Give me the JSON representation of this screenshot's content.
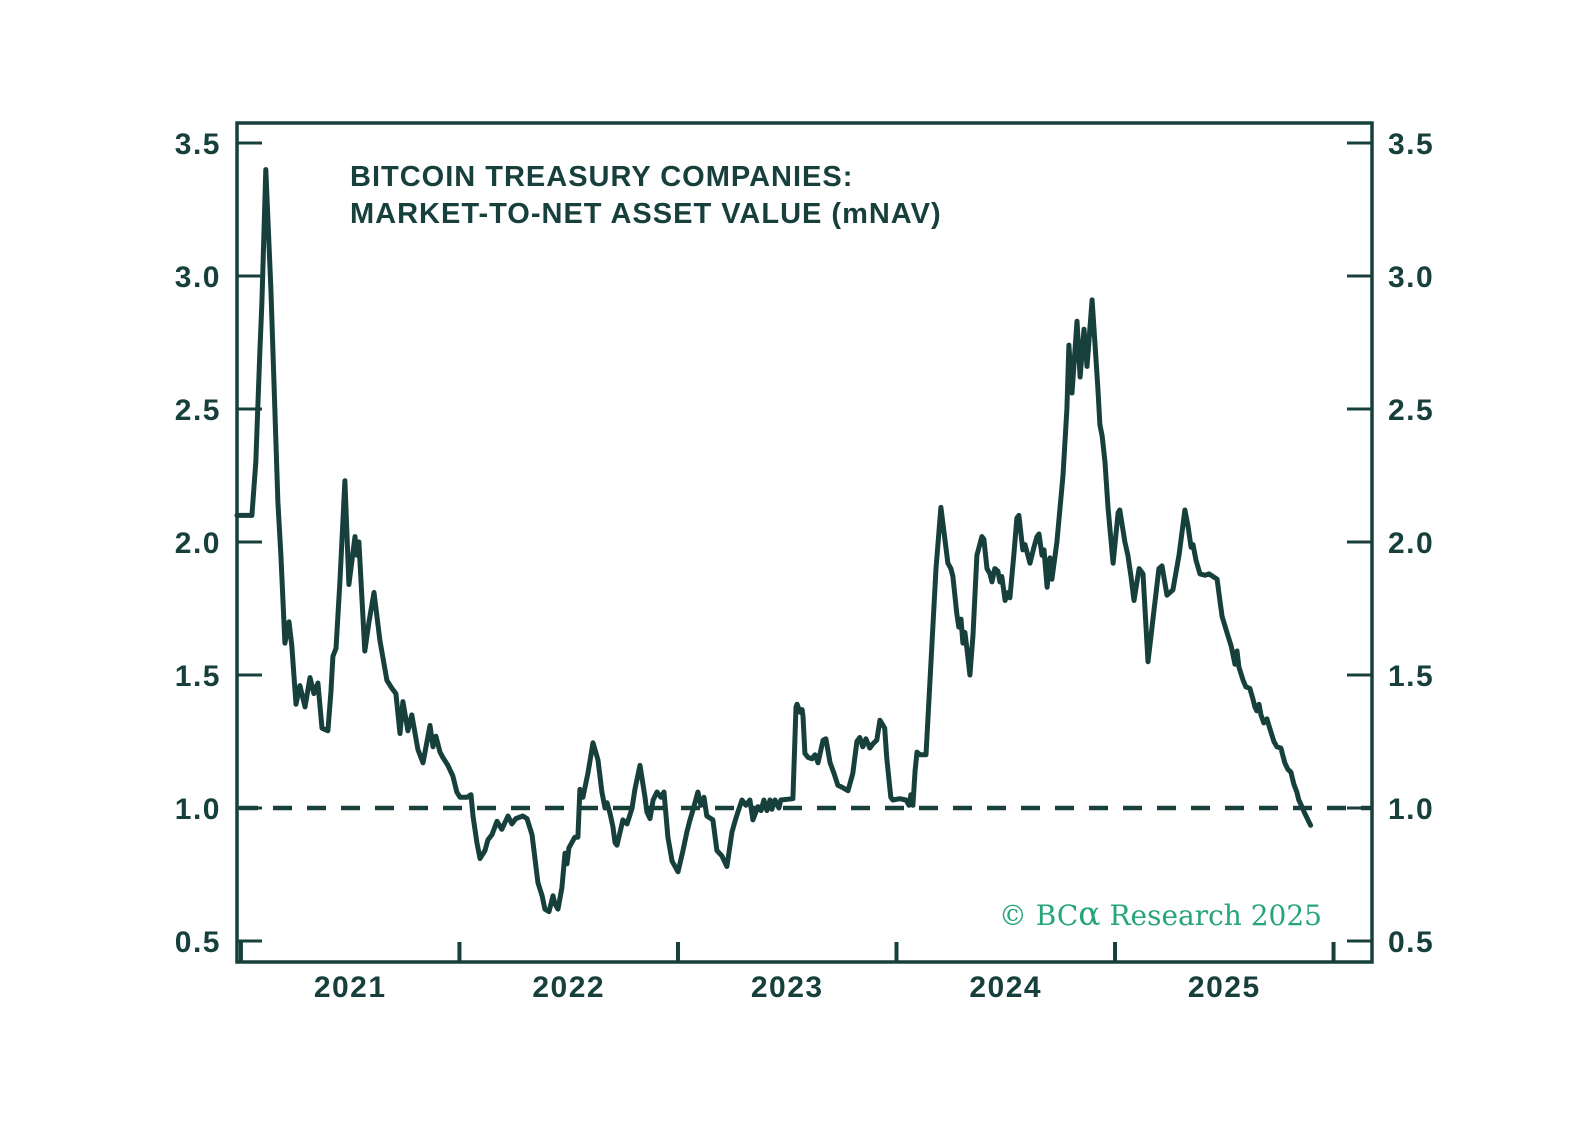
{
  "page": {
    "background": "#ffffff"
  },
  "chart_data": {
    "type": "line",
    "title_line1": "BITCOIN TREASURY COMPANIES:",
    "title_line2": "MARKET-TO-NET ASSET VALUE (mNAV)",
    "copyright_pre": "© BC",
    "copyright_alpha": "α",
    "copyright_post": " Research 2025",
    "colors": {
      "line": "#17403d",
      "text": "#17403d",
      "axis": "#17403d",
      "copyright": "#27a57a",
      "background": "#ffffff"
    },
    "grid": "off",
    "legend": "none",
    "y_axis": {
      "sides": "both",
      "ticks": [
        0.5,
        1.0,
        1.5,
        2.0,
        2.5,
        3.0,
        3.5
      ],
      "tick_labels": [
        "0.5",
        "1.0",
        "1.5",
        "2.0",
        "2.5",
        "3.0",
        "3.5"
      ],
      "range": [
        0.421,
        3.575
      ]
    },
    "x_axis": {
      "year_labels": [
        "2021",
        "2022",
        "2023",
        "2024",
        "2025"
      ],
      "year_boundaries": [
        2021,
        2022,
        2023,
        2024,
        2025,
        2026
      ],
      "range": [
        2020.982,
        2026.176
      ]
    },
    "reference_line": {
      "value": 1.0,
      "style": "dashed"
    },
    "series": [
      {
        "name": "mNAV",
        "points": [
          [
            2020.982,
            2.1
          ],
          [
            2021.05,
            2.1
          ],
          [
            2021.068,
            2.3
          ],
          [
            2021.087,
            2.72
          ],
          [
            2021.096,
            2.9
          ],
          [
            2021.114,
            3.4
          ],
          [
            2021.137,
            2.95
          ],
          [
            2021.169,
            2.15
          ],
          [
            2021.183,
            1.95
          ],
          [
            2021.201,
            1.62
          ],
          [
            2021.22,
            1.7
          ],
          [
            2021.233,
            1.61
          ],
          [
            2021.252,
            1.39
          ],
          [
            2021.27,
            1.46
          ],
          [
            2021.293,
            1.38
          ],
          [
            2021.316,
            1.49
          ],
          [
            2021.334,
            1.43
          ],
          [
            2021.352,
            1.47
          ],
          [
            2021.371,
            1.3
          ],
          [
            2021.398,
            1.29
          ],
          [
            2021.412,
            1.44
          ],
          [
            2021.421,
            1.57
          ],
          [
            2021.435,
            1.6
          ],
          [
            2021.453,
            1.85
          ],
          [
            2021.476,
            2.23
          ],
          [
            2021.494,
            1.84
          ],
          [
            2021.522,
            2.02
          ],
          [
            2021.531,
            1.95
          ],
          [
            2021.54,
            2.0
          ],
          [
            2021.567,
            1.59
          ],
          [
            2021.586,
            1.7
          ],
          [
            2021.609,
            1.81
          ],
          [
            2021.636,
            1.63
          ],
          [
            2021.668,
            1.48
          ],
          [
            2021.691,
            1.45
          ],
          [
            2021.709,
            1.43
          ],
          [
            2021.728,
            1.28
          ],
          [
            2021.741,
            1.4
          ],
          [
            2021.764,
            1.29
          ],
          [
            2021.782,
            1.35
          ],
          [
            2021.81,
            1.22
          ],
          [
            2021.833,
            1.17
          ],
          [
            2021.865,
            1.31
          ],
          [
            2021.879,
            1.23
          ],
          [
            2021.892,
            1.27
          ],
          [
            2021.911,
            1.21
          ],
          [
            2021.924,
            1.19
          ],
          [
            2021.947,
            1.16
          ],
          [
            2021.97,
            1.12
          ],
          [
            2021.988,
            1.06
          ],
          [
            2022.003,
            1.04
          ],
          [
            2022.035,
            1.04
          ],
          [
            2022.053,
            1.05
          ],
          [
            2022.062,
            0.97
          ],
          [
            2022.08,
            0.87
          ],
          [
            2022.094,
            0.81
          ],
          [
            2022.117,
            0.84
          ],
          [
            2022.13,
            0.88
          ],
          [
            2022.149,
            0.9
          ],
          [
            2022.172,
            0.95
          ],
          [
            2022.194,
            0.92
          ],
          [
            2022.222,
            0.97
          ],
          [
            2022.24,
            0.94
          ],
          [
            2022.258,
            0.96
          ],
          [
            2022.29,
            0.97
          ],
          [
            2022.309,
            0.96
          ],
          [
            2022.332,
            0.9
          ],
          [
            2022.359,
            0.72
          ],
          [
            2022.378,
            0.67
          ],
          [
            2022.391,
            0.62
          ],
          [
            2022.41,
            0.61
          ],
          [
            2022.428,
            0.67
          ],
          [
            2022.437,
            0.64
          ],
          [
            2022.451,
            0.62
          ],
          [
            2022.469,
            0.7
          ],
          [
            2022.483,
            0.83
          ],
          [
            2022.492,
            0.79
          ],
          [
            2022.501,
            0.85
          ],
          [
            2022.528,
            0.89
          ],
          [
            2022.542,
            0.89
          ],
          [
            2022.551,
            1.07
          ],
          [
            2022.565,
            1.04
          ],
          [
            2022.588,
            1.13
          ],
          [
            2022.611,
            1.245
          ],
          [
            2022.634,
            1.18
          ],
          [
            2022.652,
            1.06
          ],
          [
            2022.666,
            1.0
          ],
          [
            2022.675,
            1.02
          ],
          [
            2022.689,
            0.98
          ],
          [
            2022.702,
            0.93
          ],
          [
            2022.712,
            0.87
          ],
          [
            2022.721,
            0.86
          ],
          [
            2022.748,
            0.955
          ],
          [
            2022.767,
            0.94
          ],
          [
            2022.79,
            1.0
          ],
          [
            2022.803,
            1.07
          ],
          [
            2022.826,
            1.16
          ],
          [
            2022.849,
            1.04
          ],
          [
            2022.858,
            0.985
          ],
          [
            2022.872,
            0.96
          ],
          [
            2022.886,
            1.03
          ],
          [
            2022.904,
            1.06
          ],
          [
            2022.922,
            1.04
          ],
          [
            2022.936,
            1.06
          ],
          [
            2022.954,
            0.89
          ],
          [
            2022.973,
            0.8
          ],
          [
            2023.0,
            0.76
          ],
          [
            2023.023,
            0.84
          ],
          [
            2023.041,
            0.91
          ],
          [
            2023.055,
            0.955
          ],
          [
            2023.068,
            0.99
          ],
          [
            2023.091,
            1.06
          ],
          [
            2023.105,
            1.01
          ],
          [
            2023.119,
            1.04
          ],
          [
            2023.132,
            0.97
          ],
          [
            2023.16,
            0.955
          ],
          [
            2023.178,
            0.84
          ],
          [
            2023.201,
            0.82
          ],
          [
            2023.224,
            0.78
          ],
          [
            2023.247,
            0.91
          ],
          [
            2023.261,
            0.95
          ],
          [
            2023.274,
            0.985
          ],
          [
            2023.293,
            1.03
          ],
          [
            2023.311,
            1.01
          ],
          [
            2023.329,
            1.03
          ],
          [
            2023.343,
            0.955
          ],
          [
            2023.366,
            1.005
          ],
          [
            2023.38,
            0.99
          ],
          [
            2023.393,
            1.03
          ],
          [
            2023.407,
            0.99
          ],
          [
            2023.421,
            1.03
          ],
          [
            2023.43,
            0.995
          ],
          [
            2023.444,
            1.03
          ],
          [
            2023.462,
            1.0
          ],
          [
            2023.471,
            1.03
          ],
          [
            2023.526,
            1.035
          ],
          [
            2023.54,
            1.38
          ],
          [
            2023.545,
            1.39
          ],
          [
            2023.559,
            1.36
          ],
          [
            2023.568,
            1.37
          ],
          [
            2023.572,
            1.345
          ],
          [
            2023.581,
            1.205
          ],
          [
            2023.595,
            1.19
          ],
          [
            2023.613,
            1.185
          ],
          [
            2023.627,
            1.2
          ],
          [
            2023.641,
            1.17
          ],
          [
            2023.664,
            1.255
          ],
          [
            2023.677,
            1.26
          ],
          [
            2023.696,
            1.17
          ],
          [
            2023.714,
            1.13
          ],
          [
            2023.732,
            1.085
          ],
          [
            2023.746,
            1.08
          ],
          [
            2023.778,
            1.065
          ],
          [
            2023.8,
            1.13
          ],
          [
            2023.819,
            1.25
          ],
          [
            2023.832,
            1.265
          ],
          [
            2023.846,
            1.23
          ],
          [
            2023.86,
            1.26
          ],
          [
            2023.878,
            1.225
          ],
          [
            2023.891,
            1.24
          ],
          [
            2023.91,
            1.255
          ],
          [
            2023.924,
            1.33
          ],
          [
            2023.946,
            1.3
          ],
          [
            2023.955,
            1.19
          ],
          [
            2023.974,
            1.04
          ],
          [
            2023.983,
            1.03
          ],
          [
            2024.015,
            1.035
          ],
          [
            2024.043,
            1.03
          ],
          [
            2024.057,
            1.01
          ],
          [
            2024.066,
            1.05
          ],
          [
            2024.075,
            1.01
          ],
          [
            2024.085,
            1.14
          ],
          [
            2024.094,
            1.21
          ],
          [
            2024.108,
            1.2
          ],
          [
            2024.135,
            1.2
          ],
          [
            2024.158,
            1.55
          ],
          [
            2024.181,
            1.9
          ],
          [
            2024.203,
            2.13
          ],
          [
            2024.235,
            1.92
          ],
          [
            2024.249,
            1.9
          ],
          [
            2024.258,
            1.87
          ],
          [
            2024.276,
            1.73
          ],
          [
            2024.285,
            1.68
          ],
          [
            2024.295,
            1.71
          ],
          [
            2024.304,
            1.62
          ],
          [
            2024.313,
            1.66
          ],
          [
            2024.322,
            1.6
          ],
          [
            2024.336,
            1.5
          ],
          [
            2024.35,
            1.65
          ],
          [
            2024.368,
            1.95
          ],
          [
            2024.391,
            2.02
          ],
          [
            2024.4,
            2.01
          ],
          [
            2024.414,
            1.9
          ],
          [
            2024.428,
            1.88
          ],
          [
            2024.437,
            1.85
          ],
          [
            2024.45,
            1.9
          ],
          [
            2024.464,
            1.89
          ],
          [
            2024.473,
            1.85
          ],
          [
            2024.482,
            1.87
          ],
          [
            2024.497,
            1.78
          ],
          [
            2024.51,
            1.81
          ],
          [
            2024.519,
            1.79
          ],
          [
            2024.537,
            1.95
          ],
          [
            2024.551,
            2.09
          ],
          [
            2024.56,
            2.1
          ],
          [
            2024.578,
            1.97
          ],
          [
            2024.588,
            1.99
          ],
          [
            2024.611,
            1.92
          ],
          [
            2024.629,
            1.98
          ],
          [
            2024.643,
            2.02
          ],
          [
            2024.652,
            2.03
          ],
          [
            2024.666,
            1.95
          ],
          [
            2024.675,
            1.97
          ],
          [
            2024.689,
            1.83
          ],
          [
            2024.702,
            1.94
          ],
          [
            2024.711,
            1.86
          ],
          [
            2024.734,
            2.0
          ],
          [
            2024.762,
            2.25
          ],
          [
            2024.78,
            2.5
          ],
          [
            2024.789,
            2.74
          ],
          [
            2024.803,
            2.56
          ],
          [
            2024.826,
            2.83
          ],
          [
            2024.84,
            2.62
          ],
          [
            2024.858,
            2.8
          ],
          [
            2024.872,
            2.66
          ],
          [
            2024.895,
            2.91
          ],
          [
            2024.908,
            2.75
          ],
          [
            2024.922,
            2.57
          ],
          [
            2024.931,
            2.44
          ],
          [
            2024.941,
            2.4
          ],
          [
            2024.954,
            2.3
          ],
          [
            2024.968,
            2.13
          ],
          [
            2024.991,
            1.92
          ],
          [
            2025.014,
            2.11
          ],
          [
            2025.022,
            2.12
          ],
          [
            2025.045,
            2.0
          ],
          [
            2025.059,
            1.95
          ],
          [
            2025.073,
            1.87
          ],
          [
            2025.087,
            1.78
          ],
          [
            2025.11,
            1.9
          ],
          [
            2025.128,
            1.88
          ],
          [
            2025.151,
            1.55
          ],
          [
            2025.178,
            1.74
          ],
          [
            2025.201,
            1.9
          ],
          [
            2025.215,
            1.91
          ],
          [
            2025.238,
            1.8
          ],
          [
            2025.265,
            1.82
          ],
          [
            2025.293,
            1.95
          ],
          [
            2025.32,
            2.12
          ],
          [
            2025.334,
            2.06
          ],
          [
            2025.348,
            1.98
          ],
          [
            2025.357,
            1.99
          ],
          [
            2025.371,
            1.93
          ],
          [
            2025.389,
            1.88
          ],
          [
            2025.412,
            1.875
          ],
          [
            2025.43,
            1.88
          ],
          [
            2025.467,
            1.86
          ],
          [
            2025.48,
            1.78
          ],
          [
            2025.49,
            1.72
          ],
          [
            2025.512,
            1.66
          ],
          [
            2025.531,
            1.61
          ],
          [
            2025.549,
            1.54
          ],
          [
            2025.558,
            1.59
          ],
          [
            2025.567,
            1.53
          ],
          [
            2025.586,
            1.48
          ],
          [
            2025.599,
            1.455
          ],
          [
            2025.617,
            1.45
          ],
          [
            2025.631,
            1.41
          ],
          [
            2025.64,
            1.38
          ],
          [
            2025.649,
            1.365
          ],
          [
            2025.659,
            1.39
          ],
          [
            2025.668,
            1.35
          ],
          [
            2025.681,
            1.32
          ],
          [
            2025.695,
            1.335
          ],
          [
            2025.704,
            1.31
          ],
          [
            2025.727,
            1.25
          ],
          [
            2025.741,
            1.23
          ],
          [
            2025.759,
            1.225
          ],
          [
            2025.777,
            1.17
          ],
          [
            2025.791,
            1.145
          ],
          [
            2025.805,
            1.135
          ],
          [
            2025.818,
            1.09
          ],
          [
            2025.832,
            1.06
          ],
          [
            2025.841,
            1.03
          ],
          [
            2025.855,
            1.005
          ],
          [
            2025.868,
            0.98
          ],
          [
            2025.877,
            0.965
          ],
          [
            2025.886,
            0.95
          ],
          [
            2025.895,
            0.935
          ]
        ]
      }
    ]
  }
}
